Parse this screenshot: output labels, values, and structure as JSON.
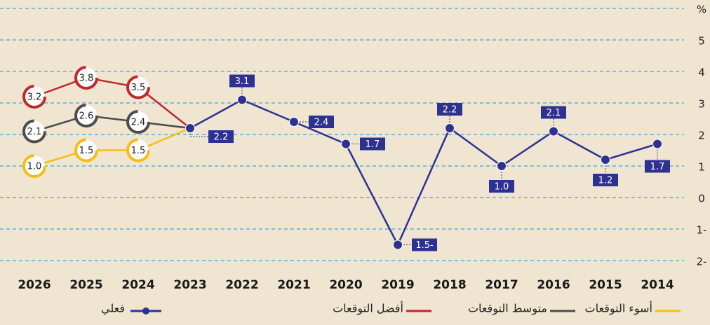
{
  "chart_data": {
    "type": "line",
    "categories": [
      "2026",
      "2025",
      "2024",
      "2023",
      "2022",
      "2021",
      "2020",
      "2019",
      "2018",
      "2017",
      "2016",
      "2015",
      "2014"
    ],
    "series": [
      {
        "name": "فعلي",
        "color": "#2e3192",
        "values": [
          null,
          null,
          null,
          2.2,
          3.1,
          2.4,
          1.7,
          -1.5,
          2.2,
          1.0,
          2.1,
          1.2,
          1.7
        ],
        "value_labels": [
          null,
          null,
          null,
          "2.2",
          "3.1",
          "2.4",
          "1.7",
          "1.5-",
          "2.2",
          "1.0",
          "2.1",
          "1.2",
          "1.7"
        ]
      },
      {
        "name": "أفضل التوقعات",
        "color": "#c1272d",
        "values": [
          3.2,
          3.8,
          3.5,
          2.2,
          null,
          null,
          null,
          null,
          null,
          null,
          null,
          null,
          null
        ],
        "value_labels": [
          "3.2",
          "3.8",
          "3.5",
          null,
          null,
          null,
          null,
          null,
          null,
          null,
          null,
          null,
          null
        ]
      },
      {
        "name": "متوسط التوقعات",
        "color": "#4d4d4d",
        "values": [
          2.1,
          2.6,
          2.4,
          2.2,
          null,
          null,
          null,
          null,
          null,
          null,
          null,
          null,
          null
        ],
        "value_labels": [
          "2.1",
          "2.6",
          "2.4",
          null,
          null,
          null,
          null,
          null,
          null,
          null,
          null,
          null,
          null
        ]
      },
      {
        "name": "أسوء التوقعات",
        "color": "#f5bd14",
        "values": [
          1.0,
          1.5,
          1.5,
          2.2,
          null,
          null,
          null,
          null,
          null,
          null,
          null,
          null,
          null
        ],
        "value_labels": [
          "1.0",
          "1.5",
          "1.5",
          null,
          null,
          null,
          null,
          null,
          null,
          null,
          null,
          null,
          null
        ]
      }
    ],
    "ylim": [
      -2,
      6
    ],
    "yticks": [
      {
        "value": 6,
        "label": "%"
      },
      5,
      4,
      3,
      2,
      1,
      0,
      {
        "value": -1,
        "label": "1-"
      },
      {
        "value": -2,
        "label": "2-"
      }
    ],
    "grid": true
  }
}
